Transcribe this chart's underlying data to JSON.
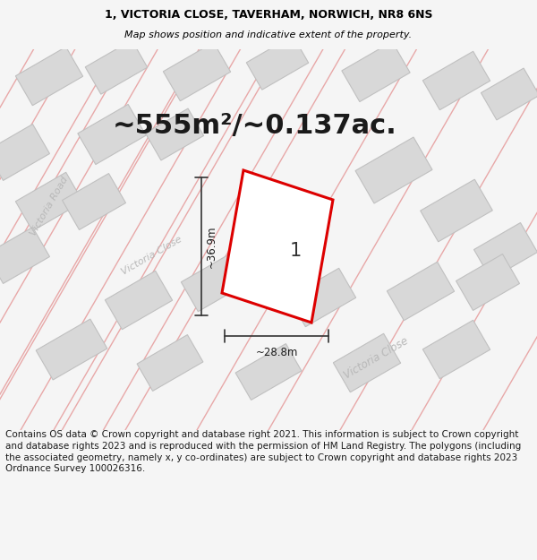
{
  "title_line1": "1, VICTORIA CLOSE, TAVERHAM, NORWICH, NR8 6NS",
  "title_line2": "Map shows position and indicative extent of the property.",
  "area_text": "~555m²/~0.137ac.",
  "label_number": "1",
  "dim_width": "~28.8m",
  "dim_height": "~36.9m",
  "road_label1": "Victoria Road",
  "road_label2": "Victoria Close",
  "road_label3": "Victoria Close",
  "footer": "Contains OS data © Crown copyright and database right 2021. This information is subject to Crown copyright and database rights 2023 and is reproduced with the permission of HM Land Registry. The polygons (including the associated geometry, namely x, y co-ordinates) are subject to Crown copyright and database rights 2023 Ordnance Survey 100026316.",
  "bg_color": "#f5f5f5",
  "map_bg": "#ffffff",
  "plot_color_border": "#dd0000",
  "building_fill": "#d8d8d8",
  "building_edge": "#c0c0c0",
  "road_line_color": "#e8a8a8",
  "road_label_color": "#b8b8b8",
  "dim_color": "#333333",
  "title_fontsize": 9,
  "area_fontsize": 22,
  "label_fontsize": 15,
  "footer_fontsize": 7.5
}
